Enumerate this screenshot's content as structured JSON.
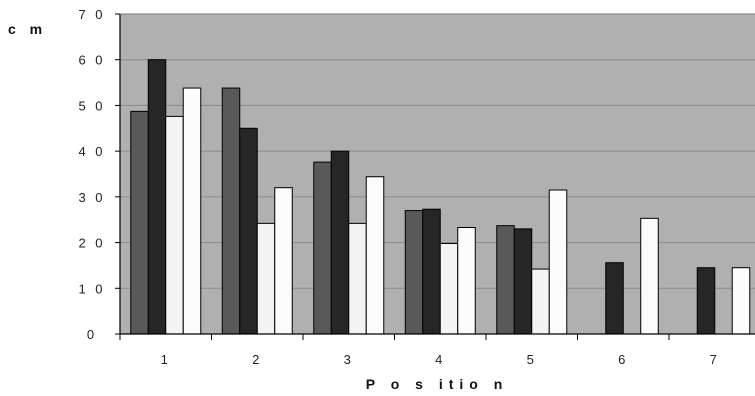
{
  "chart_data": {
    "type": "bar",
    "title": "",
    "xlabel": "P o s itio n",
    "ylabel": "c m",
    "categories": [
      "1",
      "2",
      "3",
      "4",
      "5",
      "6",
      "7"
    ],
    "y_ticks": [
      "0",
      "1 0",
      "2 0",
      "3 0",
      "4 0",
      "5 0",
      "6 0",
      "7 0"
    ],
    "ylim": [
      0,
      70
    ],
    "grid": true,
    "legend": "none",
    "series": [
      {
        "color": "#595959",
        "values": [
          48.7,
          53.8,
          37.6,
          27,
          23.7,
          null,
          null
        ]
      },
      {
        "color": "#262626",
        "values": [
          60,
          45,
          40,
          27.3,
          23,
          15.6,
          14.5
        ]
      },
      {
        "color": "#f4f4f4",
        "values": [
          47.6,
          24.2,
          24.2,
          19.8,
          14.2,
          null,
          null
        ]
      },
      {
        "color": "#fcfcfc",
        "values": [
          53.8,
          32,
          34.4,
          23.3,
          31.5,
          25.3,
          14.5
        ]
      }
    ],
    "colors": {
      "plot_background": "#b0b0b0",
      "gridline": "#8a8a8a",
      "bar_border": "#000000"
    }
  }
}
